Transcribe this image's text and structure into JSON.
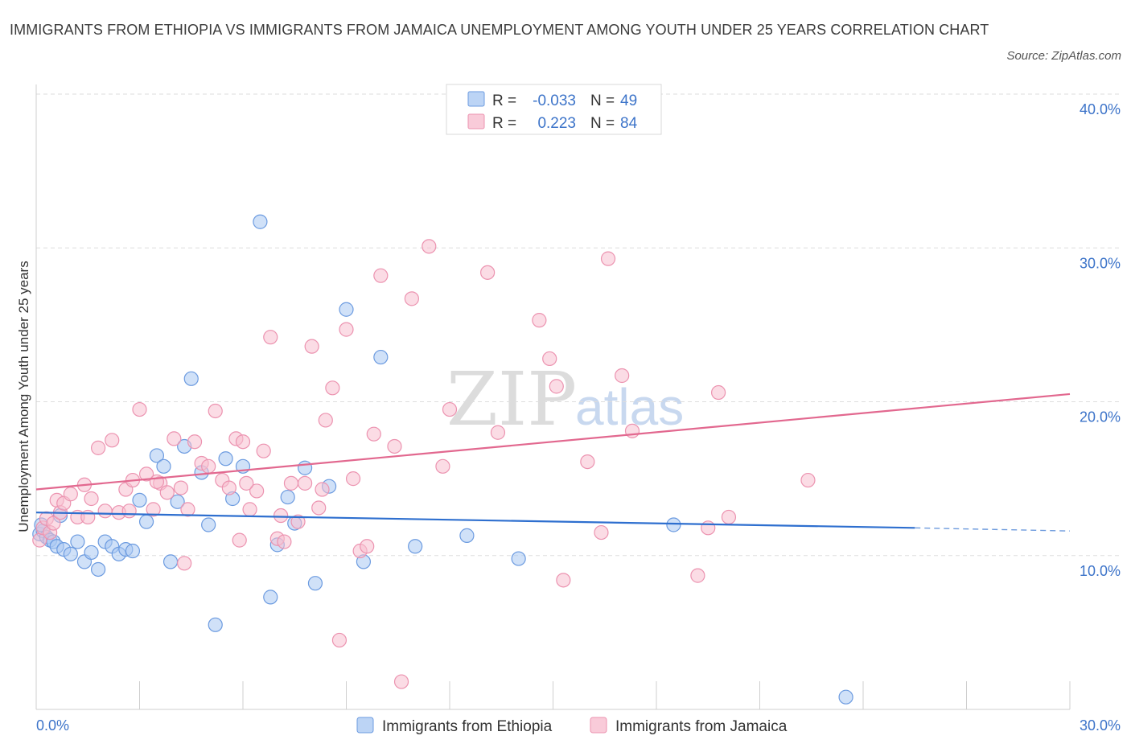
{
  "title": "IMMIGRANTS FROM ETHIOPIA VS IMMIGRANTS FROM JAMAICA UNEMPLOYMENT AMONG YOUTH UNDER 25 YEARS CORRELATION CHART",
  "source": "Source: ZipAtlas.com",
  "watermark": {
    "zip": "ZIP",
    "atlas": "atlas"
  },
  "colors": {
    "ethiopia_fill": "#a9c8f2",
    "ethiopia_stroke": "#6c9be0",
    "ethiopia_line": "#2e6fcf",
    "jamaica_fill": "#f7bfd0",
    "jamaica_stroke": "#ec93b0",
    "jamaica_line": "#e2688f",
    "accent_text": "#3d74c9",
    "grid": "#dddddd"
  },
  "legend": {
    "rows": [
      {
        "r_label": "R =",
        "r_value": "-0.033",
        "n_label": "N =",
        "n_value": "49"
      },
      {
        "r_label": "R =",
        "r_value": "0.223",
        "n_label": "N =",
        "n_value": "84"
      }
    ]
  },
  "chart_data": {
    "type": "scatter",
    "title": "IMMIGRANTS FROM ETHIOPIA VS IMMIGRANTS FROM JAMAICA UNEMPLOYMENT AMONG YOUTH UNDER 25 YEARS CORRELATION CHART",
    "xlabel": "",
    "ylabel": "Unemployment Among Youth under 25 years",
    "xlim": [
      0,
      30
    ],
    "ylim": [
      0,
      40
    ],
    "x_tick_labels": [
      "0.0%",
      "30.0%"
    ],
    "y_ticks": [
      10,
      20,
      30,
      40
    ],
    "y_tick_labels": [
      "10.0%",
      "20.0%",
      "30.0%",
      "40.0%"
    ],
    "grid": true,
    "legend_position": "top-center",
    "series": [
      {
        "name": "Immigrants from Ethiopia",
        "R": -0.033,
        "N": 49,
        "trend": {
          "x0": 0,
          "y0": 12.8,
          "x1": 25.5,
          "y1": 11.8,
          "dashed_to_x": 30,
          "dashed_to_y": 11.6
        },
        "points": [
          [
            0.1,
            11.4
          ],
          [
            0.2,
            11.6
          ],
          [
            0.3,
            11.2
          ],
          [
            0.4,
            11.0
          ],
          [
            0.5,
            10.9
          ],
          [
            0.6,
            10.6
          ],
          [
            0.7,
            12.6
          ],
          [
            0.8,
            10.4
          ],
          [
            1.0,
            10.1
          ],
          [
            1.2,
            10.9
          ],
          [
            1.4,
            9.6
          ],
          [
            1.6,
            10.2
          ],
          [
            1.8,
            9.1
          ],
          [
            2.0,
            10.9
          ],
          [
            2.2,
            10.6
          ],
          [
            2.4,
            10.1
          ],
          [
            2.6,
            10.4
          ],
          [
            2.8,
            10.3
          ],
          [
            3.0,
            13.6
          ],
          [
            3.2,
            12.2
          ],
          [
            3.5,
            16.5
          ],
          [
            3.7,
            15.8
          ],
          [
            3.9,
            9.6
          ],
          [
            4.1,
            13.5
          ],
          [
            4.3,
            17.1
          ],
          [
            4.5,
            21.5
          ],
          [
            4.8,
            15.4
          ],
          [
            5.0,
            12.0
          ],
          [
            5.2,
            5.5
          ],
          [
            5.5,
            16.3
          ],
          [
            5.7,
            13.7
          ],
          [
            6.0,
            15.8
          ],
          [
            6.5,
            31.7
          ],
          [
            6.8,
            7.3
          ],
          [
            7.0,
            10.7
          ],
          [
            7.3,
            13.8
          ],
          [
            7.5,
            12.1
          ],
          [
            7.8,
            15.7
          ],
          [
            8.1,
            8.2
          ],
          [
            8.5,
            14.5
          ],
          [
            9.0,
            26.0
          ],
          [
            9.5,
            9.6
          ],
          [
            10.0,
            22.9
          ],
          [
            11.0,
            10.6
          ],
          [
            12.5,
            11.3
          ],
          [
            14.0,
            9.8
          ],
          [
            18.5,
            12.0
          ],
          [
            23.5,
            0.8
          ],
          [
            0.15,
            12.0
          ]
        ]
      },
      {
        "name": "Immigrants from Jamaica",
        "R": 0.223,
        "N": 84,
        "trend": {
          "x0": 0,
          "y0": 14.3,
          "x1": 30,
          "y1": 20.5
        },
        "points": [
          [
            0.1,
            11.0
          ],
          [
            0.2,
            11.8
          ],
          [
            0.3,
            12.4
          ],
          [
            0.4,
            11.5
          ],
          [
            0.5,
            12.1
          ],
          [
            0.6,
            13.6
          ],
          [
            0.7,
            12.8
          ],
          [
            0.8,
            13.4
          ],
          [
            1.0,
            14.0
          ],
          [
            1.2,
            12.5
          ],
          [
            1.4,
            14.6
          ],
          [
            1.6,
            13.7
          ],
          [
            1.8,
            17.0
          ],
          [
            2.0,
            12.9
          ],
          [
            2.2,
            17.5
          ],
          [
            2.4,
            12.8
          ],
          [
            2.6,
            14.3
          ],
          [
            2.8,
            14.9
          ],
          [
            3.0,
            19.5
          ],
          [
            3.2,
            15.3
          ],
          [
            3.4,
            13.0
          ],
          [
            3.6,
            14.7
          ],
          [
            3.8,
            14.1
          ],
          [
            4.0,
            17.6
          ],
          [
            4.2,
            14.4
          ],
          [
            4.4,
            13.0
          ],
          [
            4.6,
            17.4
          ],
          [
            4.8,
            16.0
          ],
          [
            5.0,
            15.8
          ],
          [
            5.2,
            19.4
          ],
          [
            5.4,
            14.9
          ],
          [
            5.6,
            14.4
          ],
          [
            5.8,
            17.6
          ],
          [
            6.0,
            17.4
          ],
          [
            6.2,
            13.0
          ],
          [
            6.4,
            14.2
          ],
          [
            6.6,
            16.8
          ],
          [
            6.8,
            24.2
          ],
          [
            7.0,
            11.1
          ],
          [
            7.2,
            10.9
          ],
          [
            7.4,
            14.7
          ],
          [
            7.6,
            12.2
          ],
          [
            7.8,
            14.7
          ],
          [
            8.0,
            23.6
          ],
          [
            8.2,
            13.1
          ],
          [
            8.4,
            18.8
          ],
          [
            8.6,
            20.9
          ],
          [
            8.8,
            4.5
          ],
          [
            9.0,
            24.7
          ],
          [
            9.2,
            15.0
          ],
          [
            9.4,
            10.3
          ],
          [
            9.6,
            10.6
          ],
          [
            9.8,
            17.9
          ],
          [
            10.0,
            28.2
          ],
          [
            10.4,
            17.1
          ],
          [
            10.6,
            1.8
          ],
          [
            10.9,
            26.7
          ],
          [
            11.4,
            30.1
          ],
          [
            11.8,
            15.8
          ],
          [
            12.0,
            19.5
          ],
          [
            13.1,
            28.4
          ],
          [
            13.4,
            18.0
          ],
          [
            14.6,
            25.3
          ],
          [
            14.9,
            22.8
          ],
          [
            15.1,
            21.0
          ],
          [
            15.3,
            8.4
          ],
          [
            16.0,
            16.1
          ],
          [
            16.4,
            11.5
          ],
          [
            16.6,
            29.3
          ],
          [
            17.0,
            21.7
          ],
          [
            17.3,
            18.1
          ],
          [
            19.2,
            8.7
          ],
          [
            19.5,
            11.8
          ],
          [
            19.8,
            20.6
          ],
          [
            20.1,
            12.5
          ],
          [
            22.4,
            14.9
          ],
          [
            3.5,
            14.8
          ],
          [
            2.7,
            12.9
          ],
          [
            1.5,
            12.5
          ],
          [
            4.3,
            9.5
          ],
          [
            5.9,
            11.0
          ],
          [
            6.1,
            14.7
          ],
          [
            7.1,
            12.6
          ],
          [
            8.3,
            14.3
          ]
        ]
      }
    ],
    "bottom_legend": [
      "Immigrants from Ethiopia",
      "Immigrants from Jamaica"
    ]
  }
}
